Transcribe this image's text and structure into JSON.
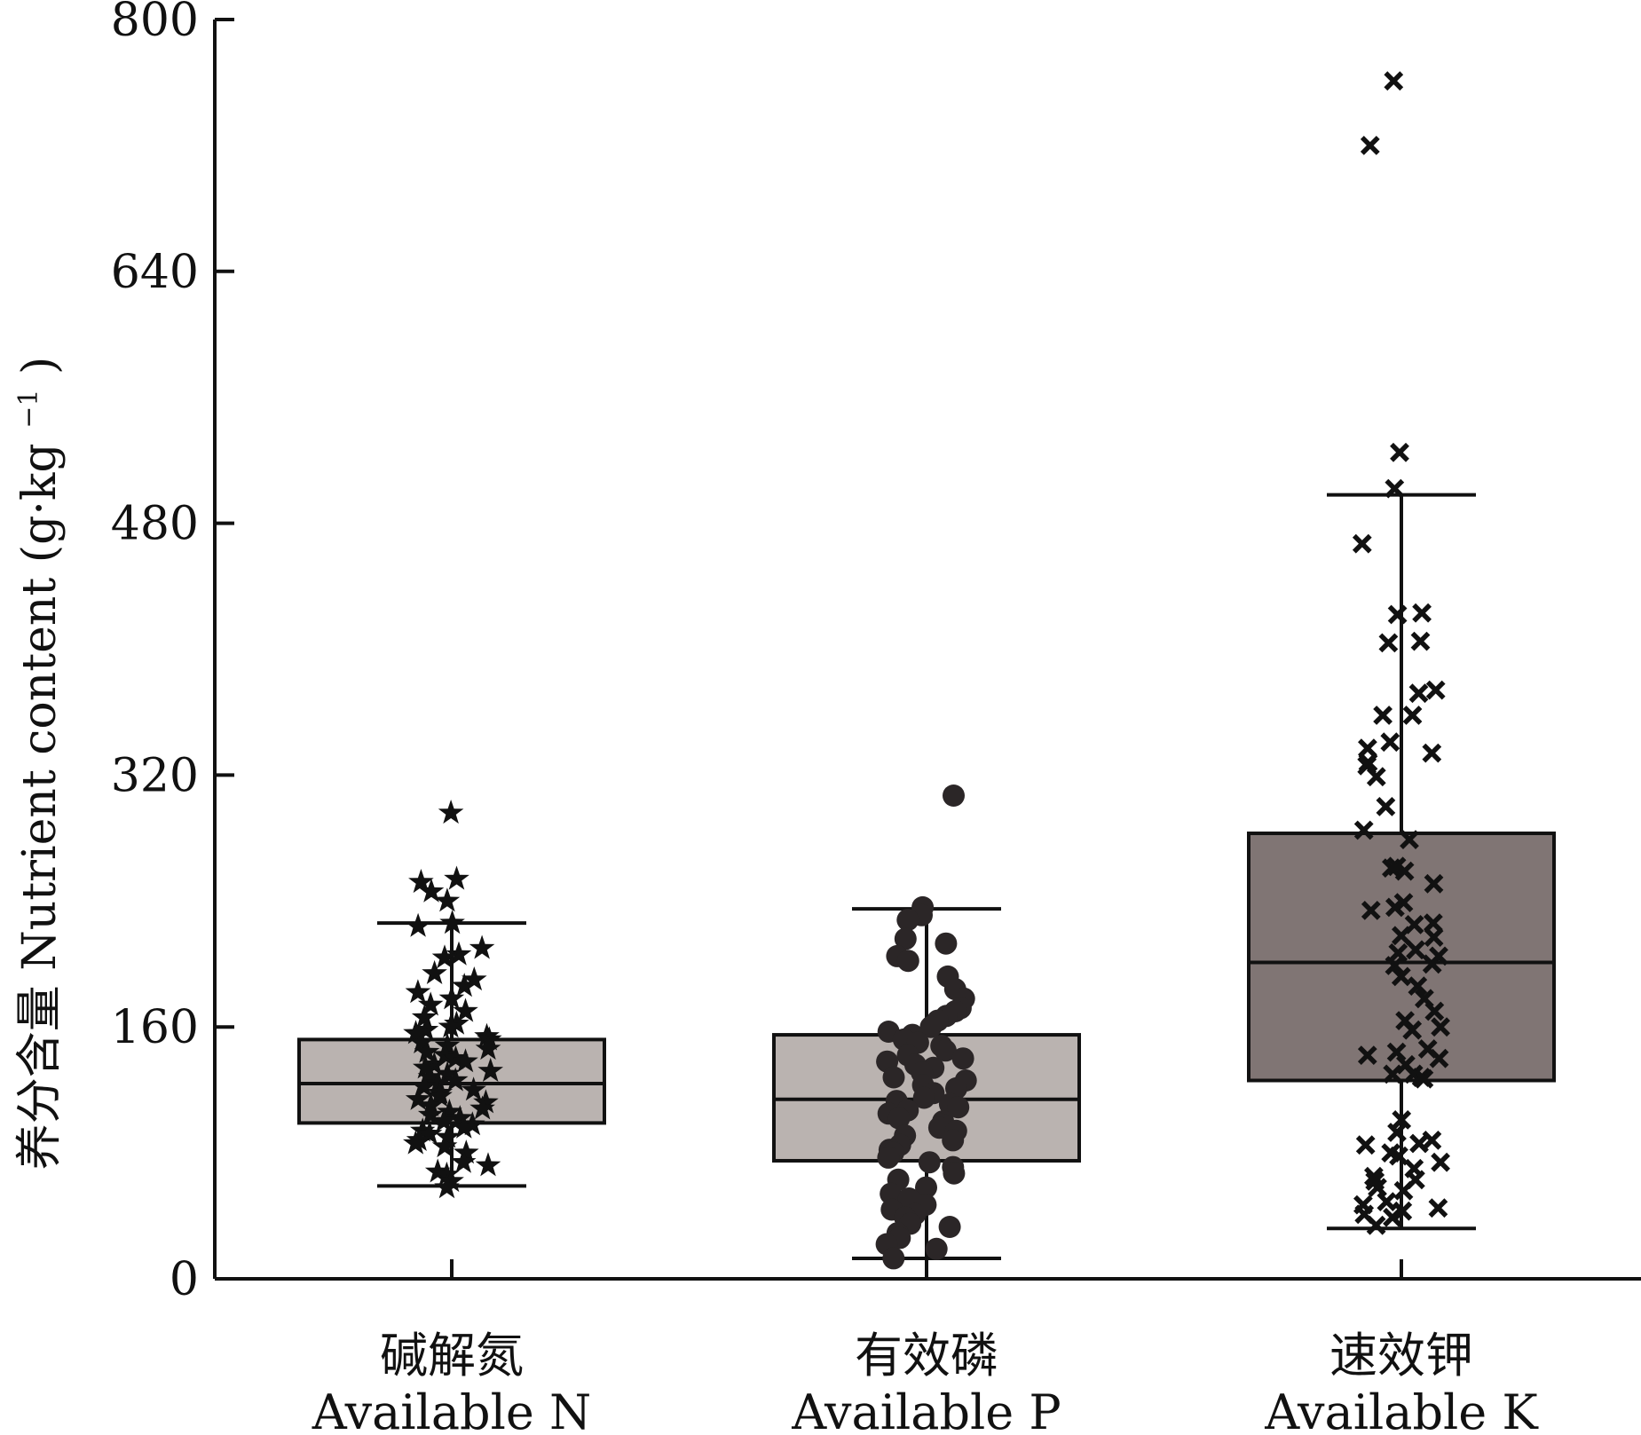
{
  "chart_data": {
    "type": "box",
    "ylabel_cn": "养分含量",
    "ylabel_en": "Nutrient content",
    "ylabel_unit": "(g·kg",
    "ylabel_unit_sup": "−1",
    "ylabel_unit_end": ")",
    "ylim": [
      0,
      800
    ],
    "yticks": [
      "0",
      "160",
      "320",
      "480",
      "640",
      "800"
    ],
    "categories": [
      {
        "cn": "碱解氮",
        "en": "Available N"
      },
      {
        "cn": "有效磷",
        "en": "Available P"
      },
      {
        "cn": "速效钾",
        "en": "Available K"
      }
    ],
    "series": [
      {
        "marker": "star",
        "box_color": "#bab3b0",
        "min": 59,
        "q1": 99,
        "median": 124,
        "q3": 152,
        "max": 226,
        "points": [
          296,
          254,
          252,
          246,
          240,
          226,
          224,
          210,
          206,
          204,
          194,
          190,
          186,
          182,
          178,
          174,
          170,
          166,
          162,
          160,
          158,
          156,
          154,
          152,
          150,
          148,
          146,
          144,
          142,
          140,
          138,
          136,
          134,
          132,
          130,
          128,
          126,
          124,
          122,
          120,
          118,
          116,
          114,
          112,
          110,
          108,
          106,
          104,
          102,
          100,
          98,
          96,
          94,
          92,
          90,
          88,
          86,
          84,
          80,
          74,
          72,
          68,
          66,
          62,
          58
        ]
      },
      {
        "marker": "circle",
        "box_color": "#bab3b0",
        "min": 13,
        "q1": 75,
        "median": 114,
        "q3": 155,
        "max": 235,
        "points": [
          307,
          236,
          231,
          228,
          216,
          213,
          205,
          202,
          192,
          184,
          178,
          172,
          170,
          167,
          164,
          160,
          157,
          155,
          153,
          152,
          150,
          148,
          145,
          142,
          140,
          138,
          136,
          134,
          131,
          128,
          126,
          123,
          121,
          118,
          115,
          113,
          111,
          109,
          107,
          105,
          102,
          100,
          98,
          96,
          94,
          91,
          88,
          85,
          82,
          80,
          77,
          74,
          71,
          67,
          63,
          58,
          54,
          51,
          47,
          44,
          41,
          39,
          35,
          33,
          29,
          26,
          22,
          19,
          13
        ]
      },
      {
        "marker": "x",
        "box_color": "#807574",
        "min": 32,
        "q1": 126,
        "median": 201,
        "q3": 283,
        "max": 498,
        "points": [
          761,
          720,
          525,
          502,
          467,
          423,
          422,
          405,
          404,
          374,
          372,
          358,
          358,
          341,
          337,
          334,
          328,
          326,
          319,
          300,
          285,
          279,
          262,
          261,
          259,
          251,
          239,
          236,
          234,
          226,
          225,
          218,
          217,
          209,
          207,
          205,
          200,
          199,
          192,
          186,
          178,
          170,
          164,
          160,
          158,
          146,
          144,
          142,
          140,
          136,
          130,
          130,
          128,
          127,
          101,
          93,
          88,
          86,
          85,
          80,
          78,
          74,
          70,
          65,
          63,
          62,
          58,
          56,
          49,
          47,
          45,
          43,
          41,
          39,
          34
        ]
      }
    ]
  }
}
